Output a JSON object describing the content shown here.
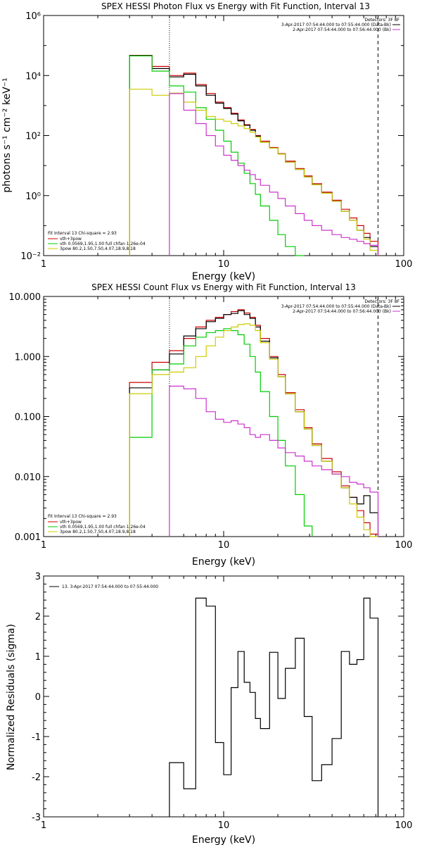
{
  "chart_data": [
    {
      "type": "line",
      "title": "SPEX HESSI Photon Flux vs Energy with Fit Function, Interval 13",
      "xlabel": "Energy (keV)",
      "ylabel": "photons s⁻¹ cm⁻² keV⁻¹",
      "xscale": "log",
      "yscale": "log",
      "xlim": [
        1,
        100
      ],
      "ylim": [
        0.01,
        1000000
      ],
      "x_tick_labels": [
        "1",
        "10",
        "100"
      ],
      "y_tick_labels": [
        "10⁻²",
        "10⁰",
        "10²",
        "10⁴",
        "10⁶"
      ],
      "vlines": [
        {
          "x": 5,
          "style": "dotted"
        },
        {
          "x": 72,
          "style": "dashed"
        }
      ],
      "legend_top_right": {
        "header": "Detectors: 3F 8F",
        "entries": [
          {
            "text": "3-Apr-2017 07:54:44.000 to 07:55:44.000 (Data-Bk)",
            "color": "#000000"
          },
          {
            "text": "2-Apr-2017 07:54:44.000 to 07:56:44.000 (Bk)",
            "color": "#cc33cc"
          }
        ]
      },
      "legend_bottom_left": {
        "header": "Fit Interval 13   Chi-square = 2.93",
        "entries": [
          {
            "text": "vth+3pow",
            "color": "#cc0000"
          },
          {
            "text": "vth 0.0569,1.95,1.00  full chfan 1.26e-04",
            "color": "#00cc00"
          },
          {
            "text": "3pow 80.2,1.50,7.50,4.07,18.9,8.18",
            "color": "#cccc00"
          }
        ]
      },
      "bin_edges": [
        3,
        4,
        5,
        6,
        7,
        8,
        9,
        10,
        11,
        12,
        13,
        14,
        15,
        16,
        18,
        20,
        22,
        25,
        28,
        31,
        35,
        40,
        45,
        50,
        55,
        60,
        65,
        72
      ],
      "series": [
        {
          "name": "vth+3pow",
          "color": "#cc0000",
          "values": [
            47000,
            20000,
            10000,
            12000,
            5000,
            2500,
            1300,
            850,
            550,
            330,
            230,
            160,
            100,
            65,
            40,
            25,
            14,
            8,
            4.5,
            2.5,
            1.3,
            0.7,
            0.35,
            0.18,
            0.1,
            0.055,
            0.03
          ]
        },
        {
          "name": "3-Apr-2017 07:54:44.000 to 07:55:44.000 (Data-Bk)",
          "color": "#000000",
          "values": [
            46000,
            17000,
            9000,
            11000,
            4500,
            2200,
            1200,
            800,
            520,
            310,
            220,
            150,
            95,
            60,
            38,
            24,
            13,
            7.5,
            4.2,
            2.3,
            1.2,
            0.65,
            0.3,
            0.15,
            0.07,
            0.04,
            0.02
          ]
        },
        {
          "name": "vth 0.0569,1.95,1.00  full chfan 1.26e-04",
          "color": "#00cc00",
          "values": [
            45000,
            14000,
            4500,
            2800,
            850,
            350,
            150,
            65,
            28,
            12,
            5.5,
            2.5,
            1.1,
            0.45,
            0.15,
            0.05,
            0.02,
            0.01
          ]
        },
        {
          "name": "3pow 80.2,1.50,7.50,4.07,18.9,8.18",
          "color": "#cccc00",
          "values": [
            3500,
            2200,
            2600,
            1300,
            700,
            430,
            350,
            300,
            250,
            210,
            170,
            130,
            90,
            60,
            38,
            24,
            13,
            7.5,
            4.2,
            2.3,
            1.2,
            0.65,
            0.3,
            0.15,
            0.07,
            0.035,
            0.015
          ]
        },
        {
          "name": "2-Apr-2017 07:54:44.000 to 07:56:44.000 (Bk)",
          "color": "#cc33cc",
          "values": [
            null,
            null,
            2500,
            700,
            250,
            100,
            45,
            22,
            15,
            10,
            7,
            5,
            3.5,
            2.2,
            1.3,
            0.8,
            0.45,
            0.25,
            0.15,
            0.1,
            0.07,
            0.05,
            0.04,
            0.035,
            0.03,
            0.025,
            0.022
          ]
        }
      ]
    },
    {
      "type": "line",
      "title": "SPEX HESSI Count Flux vs Energy with Fit Function, Interval 13",
      "xlabel": "Energy (keV)",
      "ylabel": "",
      "xscale": "log",
      "yscale": "log",
      "xlim": [
        1,
        100
      ],
      "ylim": [
        0.001,
        10
      ],
      "x_tick_labels": [
        "1",
        "10",
        "100"
      ],
      "y_tick_labels": [
        "0.001",
        "0.010",
        "0.100",
        "1.000",
        "10.000"
      ],
      "vlines": [
        {
          "x": 5,
          "style": "dotted"
        },
        {
          "x": 72,
          "style": "dashed"
        }
      ],
      "legend_top_right": {
        "header": "Detectors: 3F 8F",
        "entries": [
          {
            "text": "3-Apr-2017 07:54:44.000 to 07:55:44.000 (Data-Bk)",
            "color": "#000000"
          },
          {
            "text": "2-Apr-2017 07:54:44.000 to 07:56:44.000 (Bk)",
            "color": "#cc33cc"
          }
        ]
      },
      "legend_bottom_left": {
        "header": "Fit Interval 13   Chi-square = 2.93",
        "entries": [
          {
            "text": "vth+3pow",
            "color": "#cc0000"
          },
          {
            "text": "vth 0.0569,1.95,1.00  full chfan 1.26e-04",
            "color": "#00cc00"
          },
          {
            "text": "3pow 80.2,1.50,7.50,4.07,18.9,8.18",
            "color": "#cccc00"
          }
        ]
      },
      "bin_edges": [
        3,
        4,
        5,
        6,
        7,
        8,
        9,
        10,
        11,
        12,
        13,
        14,
        15,
        16,
        18,
        20,
        22,
        25,
        28,
        31,
        35,
        40,
        45,
        50,
        55,
        60,
        65,
        72
      ],
      "series": [
        {
          "name": "vth+3pow",
          "color": "#cc0000",
          "values": [
            0.37,
            0.8,
            1.25,
            2.0,
            3.1,
            4.0,
            4.5,
            5.0,
            5.6,
            6.0,
            5.3,
            4.5,
            3.3,
            2.0,
            1.0,
            0.5,
            0.25,
            0.13,
            0.065,
            0.035,
            0.02,
            0.012,
            0.007,
            0.0045,
            0.0027,
            0.0017,
            0.0011
          ]
        },
        {
          "name": "3-Apr-2017 07:54:44.000 to 07:55:44.000 (Data-Bk)",
          "color": "#000000",
          "values": [
            0.3,
            0.6,
            1.1,
            2.2,
            2.9,
            3.8,
            4.3,
            5.0,
            5.2,
            5.8,
            5.0,
            4.3,
            3.1,
            1.8,
            0.95,
            0.46,
            0.24,
            0.12,
            0.062,
            0.033,
            0.018,
            0.011,
            0.0065,
            0.0045,
            0.0035,
            0.0048,
            0.0025
          ]
        },
        {
          "name": "vth 0.0569,1.95,1.00  full chfan 1.26e-04",
          "color": "#00cc00",
          "values": [
            0.045,
            0.6,
            0.75,
            1.5,
            2.1,
            2.5,
            2.7,
            2.9,
            2.7,
            2.3,
            1.6,
            1.0,
            0.55,
            0.26,
            0.1,
            0.04,
            0.015,
            0.005,
            0.0015
          ]
        },
        {
          "name": "3pow 80.2,1.50,7.50,4.07,18.9,8.18",
          "color": "#cccc00",
          "values": [
            0.24,
            0.5,
            0.55,
            0.65,
            1.0,
            1.5,
            2.1,
            2.7,
            3.1,
            3.4,
            3.5,
            3.3,
            2.7,
            1.7,
            0.9,
            0.46,
            0.24,
            0.12,
            0.062,
            0.033,
            0.018,
            0.011,
            0.0065,
            0.0035,
            0.0021,
            0.0013,
            0.001
          ]
        },
        {
          "name": "2-Apr-2017 07:54:44.000 to 07:56:44.000 (Bk)",
          "color": "#cc33cc",
          "values": [
            null,
            null,
            0.32,
            0.29,
            0.2,
            0.12,
            0.09,
            0.08,
            0.085,
            0.075,
            0.065,
            0.05,
            0.045,
            0.05,
            0.04,
            0.03,
            0.025,
            0.022,
            0.018,
            0.015,
            0.013,
            0.011,
            0.01,
            0.008,
            0.0075,
            0.0065,
            0.0055
          ]
        }
      ]
    },
    {
      "type": "line",
      "title": "",
      "xlabel": "Energy (keV)",
      "ylabel": "Normalized Residuals (sigma)",
      "xscale": "log",
      "yscale": "linear",
      "xlim": [
        1,
        100
      ],
      "ylim": [
        -3,
        3
      ],
      "x_tick_labels": [
        "1",
        "10",
        "100"
      ],
      "y_tick_labels": [
        "-3",
        "-2",
        "-1",
        "0",
        "1",
        "2",
        "3"
      ],
      "legend_top_left": {
        "entries": [
          {
            "text": "13.  3-Apr-2017 07:54:44.000 to 07:55:44.000",
            "color": "#000000"
          }
        ]
      },
      "bin_edges": [
        5,
        6,
        7,
        8,
        9,
        10,
        11,
        12,
        13,
        14,
        15,
        16,
        18,
        20,
        22,
        25,
        28,
        31,
        35,
        40,
        45,
        50,
        55,
        60,
        65,
        72
      ],
      "series": [
        {
          "name": "13.  3-Apr-2017 07:54:44.000 to 07:55:44.000",
          "color": "#000000",
          "values": [
            -1.65,
            -2.3,
            2.45,
            2.25,
            -1.15,
            -1.95,
            0.22,
            1.12,
            0.35,
            0.1,
            -0.55,
            -0.8,
            1.1,
            -0.05,
            0.7,
            1.45,
            -0.5,
            -2.1,
            -1.7,
            -1.05,
            1.12,
            0.8,
            0.92,
            2.45,
            1.95
          ]
        }
      ]
    }
  ]
}
